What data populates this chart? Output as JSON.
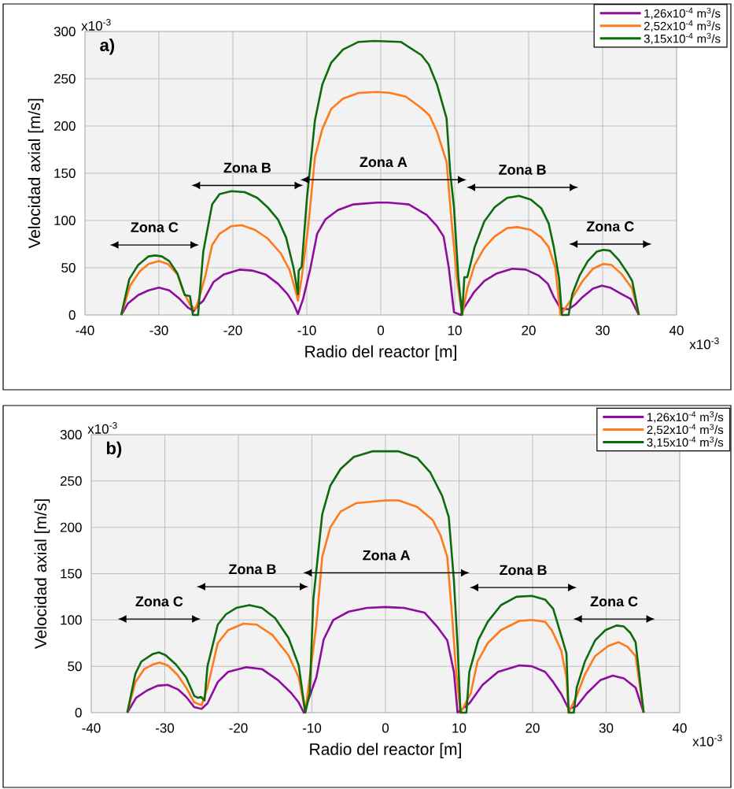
{
  "chart_data": [
    {
      "type": "line",
      "title": "a)",
      "xlabel": "Radio del reactor [m]",
      "ylabel": "Velocidad axial [m/s]",
      "xlim": [
        -40,
        40
      ],
      "xticks": [
        -40,
        -30,
        -20,
        -10,
        0,
        10,
        20,
        30,
        40
      ],
      "ylim": [
        0,
        300
      ],
      "yticks": [
        0,
        50,
        100,
        150,
        200,
        250,
        300
      ],
      "grid": true,
      "legend": "top right",
      "series": [
        {
          "name": "1,26x10$^{-4}$ m$^{3}$/s",
          "color": "#8e0c9e",
          "x": [
            -35.1,
            -34.2,
            -32.8,
            -31.4,
            -30.0,
            -28.6,
            -27.2,
            -26.1,
            -25.3,
            -24.6,
            -24.0,
            -22.6,
            -21.2,
            -19.1,
            -17.4,
            -15.6,
            -13.9,
            -12.6,
            -11.8,
            -11.2,
            -10.5,
            -9.5,
            -8.6,
            -7.5,
            -5.8,
            -3.7,
            -0.5,
            1.0,
            3.8,
            6.2,
            7.6,
            8.5,
            9.2,
            9.9,
            10.8,
            11.3,
            12.6,
            14.0,
            15.7,
            17.8,
            19.6,
            21.3,
            22.6,
            23.4,
            24.3,
            25.4,
            26.3,
            27.3,
            28.7,
            29.9,
            31.0,
            32.6,
            33.8,
            34.9
          ],
          "values": [
            0,
            12,
            21,
            26,
            29,
            26,
            17,
            8,
            4,
            11,
            15,
            35,
            43,
            48,
            47,
            43,
            33,
            22,
            12,
            1,
            17,
            50,
            86,
            101,
            111,
            117,
            119,
            119,
            117,
            106,
            94,
            83,
            50,
            3,
            0,
            8,
            24,
            36,
            44,
            49,
            48,
            42,
            33,
            19,
            7,
            6,
            11,
            19,
            28,
            31,
            29,
            22,
            17,
            0
          ]
        },
        {
          "name": "2,52x10$^{-4}$ m$^{3}$/s",
          "color": "#ff7a1a",
          "x": [
            -35.1,
            -33.9,
            -32.6,
            -31.4,
            -30.0,
            -28.8,
            -27.5,
            -26.7,
            -25.8,
            -25.1,
            -24.7,
            -23.7,
            -22.8,
            -21.8,
            -20.2,
            -18.8,
            -17.0,
            -15.3,
            -13.5,
            -12.3,
            -11.4,
            -11.2,
            -10.7,
            -9.8,
            -8.9,
            -7.9,
            -6.7,
            -5.1,
            -3.0,
            -0.5,
            1.3,
            3.4,
            5.5,
            6.6,
            7.6,
            8.9,
            9.6,
            10.3,
            11.0,
            11.7,
            12.7,
            14.0,
            15.4,
            17.1,
            18.5,
            20.3,
            21.7,
            22.7,
            23.6,
            24.3,
            25.9,
            27.3,
            28.7,
            30.1,
            31.2,
            32.6,
            34.0,
            34.9
          ],
          "values": [
            0,
            31,
            46,
            54,
            57,
            54,
            43,
            25,
            11,
            6,
            14,
            42,
            74,
            86,
            94,
            95,
            90,
            81,
            65,
            47,
            22,
            15,
            39,
            94,
            167,
            197,
            218,
            229,
            235,
            236,
            235,
            231,
            219,
            211,
            194,
            162,
            97,
            39,
            0,
            28,
            53,
            71,
            83,
            92,
            93,
            90,
            82,
            72,
            50,
            0,
            18,
            36,
            49,
            54,
            53,
            43,
            28,
            0
          ]
        },
        {
          "name": "3,15x10$^{-4}$ m$^{3}$/s",
          "color": "#0d6b0d",
          "x": [
            -35.1,
            -34.0,
            -32.8,
            -31.4,
            -30.5,
            -29.6,
            -28.6,
            -27.5,
            -26.5,
            -25.8,
            -25.4,
            -24.7,
            -24.6,
            -24.0,
            -22.8,
            -21.8,
            -20.2,
            -18.4,
            -16.7,
            -15.3,
            -13.9,
            -12.8,
            -11.8,
            -11.2,
            -11.1,
            -10.7,
            -10.0,
            -8.9,
            -7.9,
            -6.7,
            -5.1,
            -3.0,
            -0.9,
            2.7,
            5.5,
            6.5,
            7.6,
            8.9,
            9.4,
            9.9,
            10.5,
            11.0,
            11.3,
            11.7,
            12.7,
            14.0,
            15.4,
            17.1,
            18.7,
            20.3,
            21.7,
            22.7,
            23.4,
            24.1,
            24.5,
            25.4,
            25.9,
            26.9,
            28.0,
            29.2,
            30.1,
            31.0,
            32.2,
            33.4,
            34.0,
            34.9
          ],
          "values": [
            0,
            38,
            53,
            62,
            63,
            62,
            57,
            44,
            21,
            20,
            0,
            0,
            11,
            67,
            117,
            128,
            131,
            130,
            124,
            114,
            101,
            82,
            50,
            22,
            47,
            51,
            122,
            206,
            244,
            267,
            281,
            289,
            290,
            289,
            275,
            265,
            244,
            208,
            150,
            114,
            39,
            0,
            40,
            40,
            72,
            99,
            114,
            124,
            126,
            122,
            113,
            97,
            72,
            39,
            0,
            0,
            22,
            42,
            57,
            67,
            69,
            68,
            58,
            44,
            36,
            0
          ]
        }
      ],
      "annotations": [
        "Zona C",
        "Zona B",
        "Zona A",
        "Zona B",
        "Zona C",
        "x10$^{-3}$",
        "x10$^{-3}$"
      ]
    },
    {
      "type": "line",
      "title": "b)",
      "xlabel": "Radio del reactor [m]",
      "ylabel": "Velocidad axial [m/s]",
      "xlim": [
        -40,
        40
      ],
      "xticks": [
        -40,
        -30,
        -20,
        -10,
        0,
        10,
        20,
        30,
        40
      ],
      "ylim": [
        0,
        300
      ],
      "yticks": [
        0,
        50,
        100,
        150,
        200,
        250,
        300
      ],
      "grid": true,
      "legend": "top right",
      "series": [
        {
          "name": "1,26x10$^{-4}$ m$^{3}$/s",
          "color": "#8e0c9e",
          "x": [
            -35.1,
            -33.9,
            -32.4,
            -31.0,
            -29.6,
            -28.2,
            -27.1,
            -26.0,
            -25.0,
            -24.2,
            -22.8,
            -21.4,
            -18.9,
            -16.8,
            -14.6,
            -12.8,
            -11.8,
            -11.1,
            -9.4,
            -8.4,
            -7.1,
            -5.0,
            -2.5,
            0,
            2.5,
            5.3,
            7.1,
            8.4,
            9.3,
            9.8,
            11.4,
            13.2,
            15.3,
            18.2,
            19.9,
            21.7,
            22.8,
            23.9,
            24.9,
            26.0,
            27.4,
            29.2,
            30.9,
            32.4,
            34.0,
            35.1
          ],
          "values": [
            0,
            16,
            24,
            29,
            30,
            25,
            17,
            6,
            4,
            10,
            33,
            44,
            49,
            47,
            35,
            21,
            11,
            0,
            38,
            79,
            100,
            109,
            113,
            114,
            113,
            108,
            92,
            78,
            44,
            0,
            10,
            30,
            44,
            51,
            50,
            44,
            33,
            20,
            4,
            7,
            21,
            35,
            40,
            37,
            27,
            0
          ]
        },
        {
          "name": "2,52x10$^{-4}$ m$^{3}$/s",
          "color": "#ff7a1a",
          "x": [
            -35.1,
            -34.0,
            -32.8,
            -31.6,
            -30.7,
            -29.6,
            -28.3,
            -27.1,
            -26.0,
            -25.0,
            -24.2,
            -22.8,
            -21.4,
            -19.3,
            -17.5,
            -15.4,
            -13.2,
            -11.8,
            -10.9,
            -9.4,
            -8.6,
            -7.5,
            -6.1,
            -4.0,
            0,
            1.8,
            4.3,
            6.4,
            7.5,
            8.4,
            9.1,
            9.6,
            10.2,
            11.6,
            12.5,
            13.9,
            15.7,
            18.2,
            19.9,
            21.7,
            22.6,
            23.9,
            24.6,
            24.9,
            26.0,
            27.1,
            28.5,
            30.3,
            31.7,
            32.9,
            34.0,
            35.1
          ],
          "values": [
            0,
            33,
            47,
            52,
            54,
            51,
            41,
            27,
            11,
            8,
            27,
            75,
            89,
            96,
            95,
            84,
            62,
            38,
            1,
            95,
            168,
            200,
            217,
            226,
            229,
            229,
            222,
            208,
            191,
            168,
            100,
            44,
            0,
            21,
            55,
            75,
            89,
            99,
            100,
            98,
            89,
            67,
            38,
            0,
            18,
            41,
            61,
            72,
            76,
            71,
            61,
            0
          ]
        },
        {
          "name": "3,15x10$^{-4}$ m$^{3}$/s",
          "color": "#0d6b0d",
          "x": [
            -35.1,
            -34.0,
            -33.2,
            -31.7,
            -30.8,
            -29.9,
            -28.5,
            -27.1,
            -26.0,
            -25.5,
            -25.1,
            -24.6,
            -24.2,
            -22.8,
            -21.7,
            -20.3,
            -18.5,
            -16.8,
            -15.0,
            -13.2,
            -11.8,
            -10.9,
            -10.3,
            -9.8,
            -8.6,
            -7.5,
            -6.1,
            -4.3,
            -1.8,
            0,
            1.8,
            4.3,
            6.1,
            7.7,
            8.6,
            9.3,
            9.8,
            10.2,
            11.0,
            11.4,
            12.6,
            13.9,
            15.7,
            17.8,
            19.9,
            21.7,
            22.8,
            23.9,
            24.6,
            24.9,
            25.6,
            26.0,
            27.1,
            28.5,
            29.9,
            31.4,
            32.4,
            33.3,
            34.0,
            35.1
          ],
          "values": [
            0,
            42,
            55,
            63,
            65,
            62,
            52,
            38,
            18,
            16,
            17,
            13,
            50,
            95,
            106,
            113,
            116,
            113,
            102,
            81,
            51,
            0,
            21,
            123,
            214,
            245,
            263,
            276,
            282,
            282,
            282,
            275,
            259,
            234,
            211,
            143,
            72,
            0,
            0,
            44,
            78,
            98,
            116,
            125,
            126,
            122,
            112,
            83,
            64,
            0,
            0,
            27,
            55,
            78,
            89,
            94,
            93,
            86,
            76,
            0
          ]
        }
      ],
      "annotations": [
        "Zona C",
        "Zona B",
        "Zona A",
        "Zona B",
        "Zona C",
        "x10$^{-3}$",
        "x10$^{-3}$"
      ]
    }
  ]
}
